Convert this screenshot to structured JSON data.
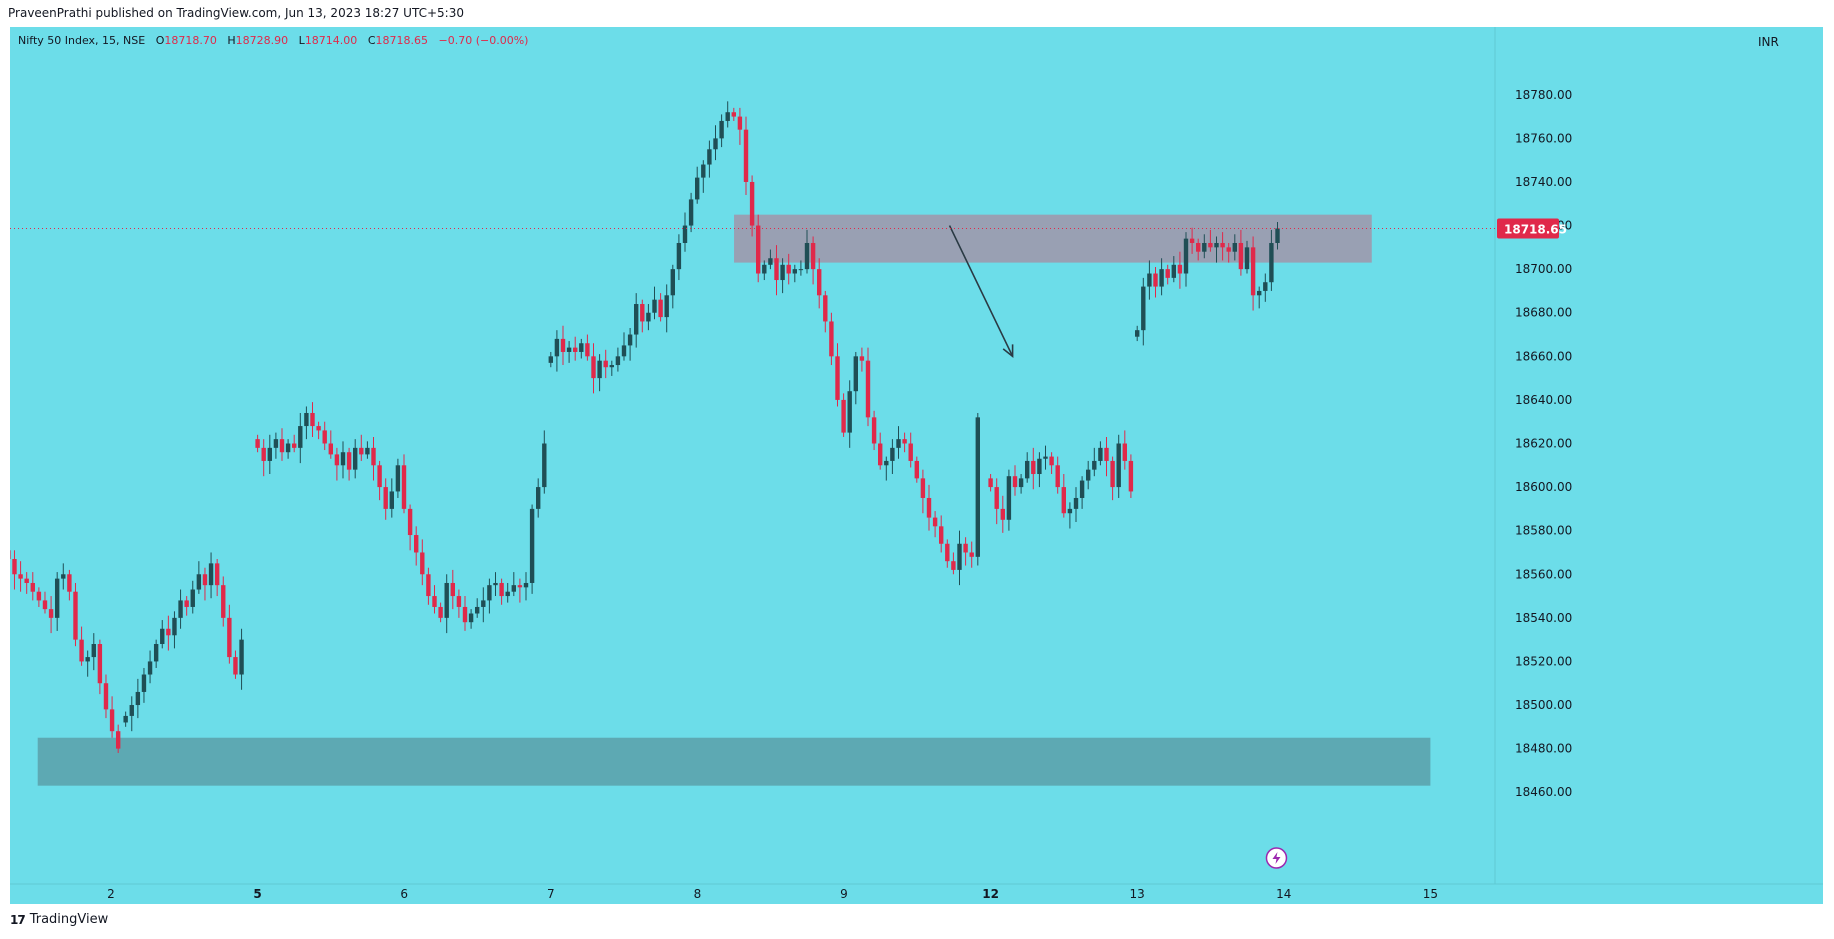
{
  "header": {
    "published_text": "PraveenPrathi published on TradingView.com, Jun 13, 2023 18:27 UTC+5:30"
  },
  "legend": {
    "symbol": "Nifty 50 Index, 15, NSE",
    "open_label": "O",
    "open_value": "18718.70",
    "high_label": "H",
    "high_value": "18728.90",
    "low_label": "L",
    "low_value": "18714.00",
    "close_label": "C",
    "close_value": "18718.65",
    "change": "−0.70 (−0.00%)"
  },
  "currency": "INR",
  "price_tag": "18718.65",
  "footer": {
    "brand": "TradingView",
    "logo": "17"
  },
  "colors": {
    "background": "#6cdde9",
    "up": "#1f4e55",
    "down": "#e0294a",
    "supply_zone": "#9c9cb0",
    "demand_zone": "#5da5b0",
    "price_tag": "#e0294a"
  },
  "chart_data": {
    "type": "candlestick",
    "title": "Nifty 50 Index, 15, NSE",
    "ylim": [
      18450,
      18790
    ],
    "y_ticks": [
      18780,
      18760,
      18740,
      18720,
      18700,
      18680,
      18660,
      18640,
      18620,
      18600,
      18580,
      18560,
      18540,
      18520,
      18500,
      18480,
      18460
    ],
    "x_ticks": [
      {
        "label": "2",
        "day": 1,
        "bold": false
      },
      {
        "label": "5",
        "day": 2,
        "bold": true
      },
      {
        "label": "6",
        "day": 3,
        "bold": false
      },
      {
        "label": "7",
        "day": 4,
        "bold": false
      },
      {
        "label": "8",
        "day": 5,
        "bold": false
      },
      {
        "label": "9",
        "day": 6,
        "bold": false
      },
      {
        "label": "12",
        "day": 7,
        "bold": true
      },
      {
        "label": "13",
        "day": 8,
        "bold": false
      },
      {
        "label": "14",
        "day": 9,
        "bold": false
      },
      {
        "label": "15",
        "day": 10,
        "bold": false
      }
    ],
    "last_price": 18718.65,
    "zones": [
      {
        "name": "supply",
        "day_start": 5.25,
        "day_end": 9.6,
        "low": 18703,
        "high": 18725
      },
      {
        "name": "demand",
        "day_start": 0.5,
        "day_end": 10.0,
        "low": 18463,
        "high": 18485
      }
    ],
    "arrow": {
      "from": {
        "day": 6.72,
        "price": 18720
      },
      "to": {
        "day": 7.15,
        "price": 18660
      }
    },
    "sessions": [
      {
        "day": 0.3,
        "closes": [
          18567,
          18560,
          18558,
          18556,
          18552,
          18548,
          18544,
          18540,
          18558,
          18560,
          18552,
          18530,
          18520,
          18522,
          18528,
          18510,
          18498,
          18488,
          18480
        ]
      },
      {
        "day": 1.1,
        "closes": [
          18495,
          18500,
          18506,
          18514,
          18520,
          18528,
          18535,
          18532,
          18540,
          18548,
          18545,
          18553,
          18560,
          18555,
          18565,
          18555,
          18540,
          18522,
          18514,
          18530
        ]
      },
      {
        "day": 2.0,
        "closes": [
          18618,
          18612,
          18618,
          18622,
          18616,
          18620,
          18618,
          18628,
          18634,
          18628,
          18626,
          18620,
          18615,
          18610,
          18616,
          18608,
          18618,
          18615,
          18618,
          18610,
          18600,
          18590,
          18598,
          18610,
          18590,
          18578,
          18570,
          18560,
          18550,
          18545,
          18540,
          18556,
          18550,
          18545,
          18538,
          18542,
          18545,
          18548,
          18555,
          18556,
          18550,
          18552,
          18555,
          18554,
          18556,
          18590,
          18600,
          18620
        ]
      },
      {
        "day": 4.0,
        "closes": [
          18660,
          18668,
          18662,
          18664,
          18662,
          18666,
          18660,
          18650,
          18658,
          18655,
          18656,
          18660,
          18665,
          18670,
          18684,
          18676,
          18680,
          18686,
          18678,
          18688,
          18700,
          18712,
          18720,
          18732,
          18742,
          18748,
          18755,
          18760,
          18768,
          18772,
          18770,
          18764,
          18740,
          18720,
          18698,
          18702,
          18705,
          18695,
          18702,
          18698,
          18700,
          18700,
          18712,
          18700,
          18688,
          18676,
          18660,
          18640,
          18625,
          18644,
          18660,
          18658,
          18632,
          18620,
          18610,
          18612,
          18618,
          18622,
          18620,
          18612,
          18604,
          18595,
          18586,
          18582,
          18574,
          18566,
          18562,
          18574,
          18570,
          18568,
          18632
        ]
      },
      {
        "day": 7.0,
        "closes": [
          18600,
          18590,
          18585,
          18605,
          18600,
          18604,
          18612,
          18606,
          18613,
          18614,
          18610,
          18600,
          18588,
          18590,
          18595,
          18603,
          18608,
          18612,
          18618,
          18612,
          18600,
          18620,
          18612,
          18598
        ]
      },
      {
        "day": 8.0,
        "closes": [
          18672,
          18692,
          18698,
          18692,
          18700,
          18696,
          18702,
          18698,
          18714,
          18712,
          18708,
          18712,
          18710,
          18712,
          18710,
          18708,
          18712,
          18700,
          18710,
          18688,
          18690,
          18694,
          18712,
          18718.65
        ]
      }
    ]
  }
}
